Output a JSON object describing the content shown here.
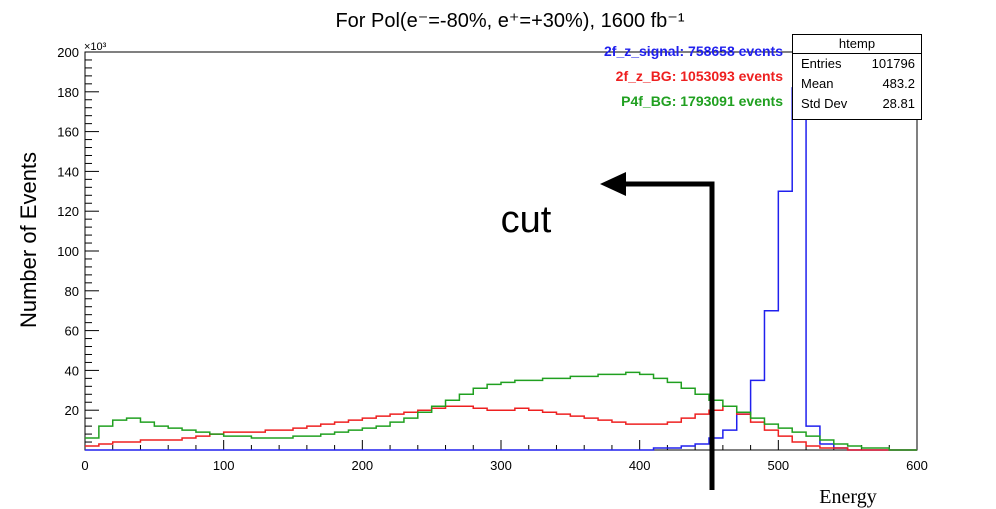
{
  "chart_data": {
    "type": "line",
    "title": "For Pol(e⁻=-80%, e⁺=+30%),  1600 fb⁻¹",
    "xlabel": "Energy",
    "ylabel": "Number of Events",
    "y_multiplier_label": "×10³",
    "xlim": [
      0,
      600
    ],
    "ylim": [
      0,
      200
    ],
    "x_ticks": [
      0,
      100,
      200,
      300,
      400,
      500,
      600
    ],
    "y_ticks": [
      20,
      40,
      60,
      80,
      100,
      120,
      140,
      160,
      180,
      200
    ],
    "bin_width": 10,
    "series": [
      {
        "name": "2f_z_signal: 758658 events",
        "color": "#2020ee",
        "values": [
          0,
          0,
          0,
          0,
          0,
          0,
          0,
          0,
          0,
          0,
          0,
          0,
          0,
          0,
          0,
          0,
          0,
          0,
          0,
          0,
          0,
          0,
          0,
          0,
          0,
          0,
          0,
          0,
          0,
          0,
          0,
          0,
          0,
          0,
          0,
          0,
          0,
          0,
          0,
          0,
          0,
          1,
          1,
          2,
          3,
          6,
          10,
          18,
          35,
          70,
          130,
          182,
          12,
          3,
          1,
          0,
          0,
          0,
          0,
          0
        ]
      },
      {
        "name": "2f_z_BG: 1053093 events",
        "color": "#ee2020",
        "values": [
          2,
          3,
          4,
          4,
          5,
          5,
          5,
          6,
          7,
          8,
          9,
          9,
          9,
          10,
          10,
          11,
          12,
          13,
          14,
          15,
          16,
          17,
          18,
          19,
          20,
          21,
          22,
          22,
          21,
          20,
          20,
          21,
          20,
          19,
          18,
          17,
          16,
          15,
          14,
          13,
          13,
          13,
          14,
          16,
          18,
          20,
          22,
          18,
          14,
          10,
          7,
          4,
          2,
          1,
          1,
          0,
          0,
          0,
          0,
          0
        ]
      },
      {
        "name": "P4f_BG: 1793091 events",
        "color": "#20a020",
        "values": [
          6,
          12,
          15,
          16,
          14,
          12,
          11,
          10,
          9,
          8,
          7,
          7,
          6,
          6,
          6,
          7,
          7,
          8,
          9,
          10,
          11,
          12,
          14,
          16,
          19,
          22,
          25,
          28,
          31,
          33,
          34,
          35,
          35,
          36,
          36,
          37,
          37,
          38,
          38,
          39,
          38,
          36,
          34,
          31,
          28,
          25,
          22,
          19,
          16,
          13,
          11,
          9,
          7,
          5,
          3,
          2,
          1,
          1,
          0,
          0
        ]
      }
    ],
    "annotation": "cut"
  },
  "stats_box": {
    "title": "htemp",
    "rows": [
      {
        "label": "Entries",
        "value": "101796"
      },
      {
        "label": "Mean",
        "value": "483.2"
      },
      {
        "label": "Std Dev",
        "value": "28.81"
      }
    ]
  }
}
